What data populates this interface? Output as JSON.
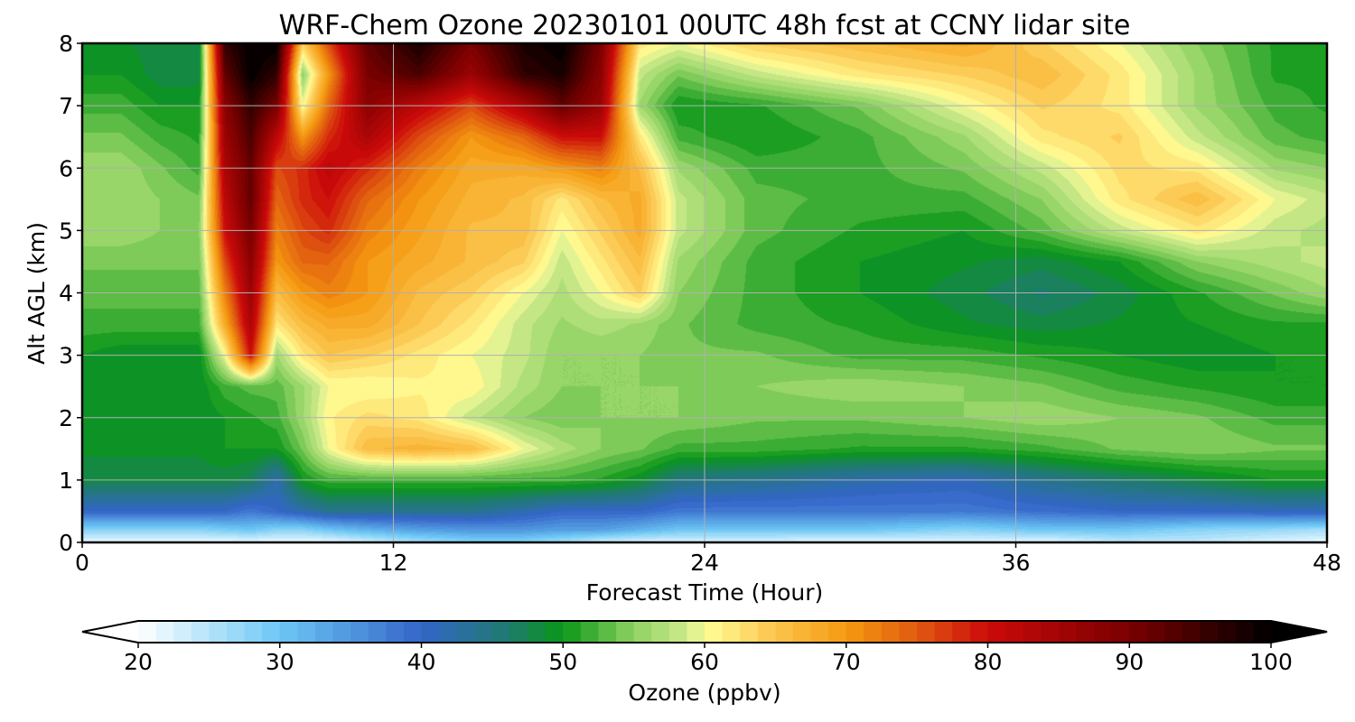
{
  "chart_data": {
    "type": "heatmap",
    "title": "WRF-Chem Ozone  20230101 00UTC 48h fcst at CCNY lidar site",
    "xlabel": "Forecast Time (Hour)",
    "ylabel": "Alt AGL (km)",
    "xlim": [
      0,
      48
    ],
    "ylim": [
      0,
      8
    ],
    "xticks": [
      0,
      12,
      24,
      36,
      48
    ],
    "yticks": [
      0,
      1,
      2,
      3,
      4,
      5,
      6,
      7,
      8
    ],
    "grid": true,
    "colorbar": {
      "label": "Ozone  (ppbv)",
      "range": [
        20,
        100
      ],
      "ticks": [
        20,
        30,
        40,
        50,
        60,
        70,
        80,
        90,
        100
      ],
      "extend": "both",
      "stops": [
        {
          "v": 20,
          "c": "#ffffff"
        },
        {
          "v": 30,
          "c": "#6cc7f5"
        },
        {
          "v": 40,
          "c": "#3465c8"
        },
        {
          "v": 46,
          "c": "#1f7a70"
        },
        {
          "v": 50,
          "c": "#0a9618"
        },
        {
          "v": 55,
          "c": "#8ed262"
        },
        {
          "v": 59,
          "c": "#d3ec8e"
        },
        {
          "v": 60,
          "c": "#ffff99"
        },
        {
          "v": 65,
          "c": "#fbc44c"
        },
        {
          "v": 70,
          "c": "#f59a10"
        },
        {
          "v": 75,
          "c": "#e05a10"
        },
        {
          "v": 80,
          "c": "#cc0a0a"
        },
        {
          "v": 90,
          "c": "#7a0000"
        },
        {
          "v": 100,
          "c": "#000000"
        }
      ]
    },
    "x_hours": [
      0,
      1.5,
      3,
      4.5,
      5.5,
      6.5,
      7.5,
      8.5,
      9.5,
      11,
      13,
      15,
      17,
      18.5,
      20,
      21.5,
      23,
      26,
      30,
      34,
      37,
      40,
      43,
      46,
      48
    ],
    "y_km": [
      0,
      0.2,
      0.5,
      1,
      1.5,
      2,
      2.5,
      3,
      3.5,
      4,
      4.5,
      5,
      5.5,
      6,
      6.5,
      7,
      7.5,
      8
    ],
    "ozone_ppbv": [
      [
        21,
        21,
        21,
        21,
        21,
        21,
        21,
        21,
        21,
        23,
        26,
        28,
        28,
        26,
        23,
        22,
        22,
        22,
        21,
        22,
        21,
        24,
        24,
        22,
        21
      ],
      [
        28,
        28,
        28,
        28,
        29,
        30,
        28,
        28,
        30,
        32,
        34,
        35,
        35,
        34,
        34,
        32,
        30,
        30,
        30,
        28,
        30,
        30,
        28,
        27,
        26
      ],
      [
        40,
        40,
        40,
        40,
        40,
        38,
        40,
        42,
        44,
        44,
        44,
        44,
        42,
        40,
        40,
        40,
        38,
        38,
        38,
        38,
        39,
        40,
        40,
        41,
        41
      ],
      [
        48,
        48,
        48,
        48,
        48,
        47,
        42,
        50,
        52,
        52,
        52,
        52,
        52,
        52,
        51,
        49,
        45,
        44,
        42,
        41,
        44,
        46,
        48,
        50,
        50
      ],
      [
        49,
        49,
        49,
        49,
        50,
        50,
        50,
        54,
        60,
        66,
        67,
        66,
        60,
        57,
        55,
        54,
        52,
        52,
        51,
        51,
        52,
        54,
        55,
        54,
        54
      ],
      [
        50,
        50,
        49,
        49,
        50,
        51,
        52,
        56,
        61,
        63,
        62,
        58,
        55,
        54,
        55,
        55,
        55,
        54,
        54,
        55,
        56,
        55,
        54,
        52,
        52
      ],
      [
        49,
        49,
        49,
        49,
        52,
        53,
        53,
        56,
        60,
        60,
        61,
        61,
        57,
        55,
        55,
        55,
        55,
        55,
        56,
        55,
        54,
        52,
        51,
        50,
        50
      ],
      [
        50,
        49,
        49,
        49,
        60,
        80,
        56,
        62,
        65,
        64,
        62,
        60,
        58,
        55,
        55,
        55,
        54,
        54,
        52,
        52,
        51,
        50,
        49,
        50,
        50
      ],
      [
        52,
        52,
        52,
        52,
        68,
        84,
        62,
        66,
        68,
        68,
        65,
        62,
        58,
        56,
        57,
        56,
        54,
        52,
        51,
        49,
        48,
        49,
        50,
        51,
        51
      ],
      [
        53,
        53,
        53,
        53,
        72,
        86,
        66,
        70,
        72,
        70,
        66,
        64,
        60,
        57,
        60,
        64,
        55,
        52,
        50,
        48,
        46,
        48,
        51,
        54,
        56
      ],
      [
        54,
        54,
        54,
        54,
        76,
        88,
        70,
        74,
        74,
        70,
        68,
        66,
        64,
        58,
        62,
        66,
        56,
        52,
        50,
        49,
        48,
        50,
        55,
        57,
        58
      ],
      [
        56,
        56,
        55,
        55,
        80,
        90,
        72,
        76,
        78,
        72,
        69,
        66,
        66,
        60,
        64,
        68,
        58,
        53,
        51,
        50,
        53,
        58,
        62,
        58,
        57
      ],
      [
        56,
        56,
        55,
        54,
        82,
        92,
        74,
        78,
        80,
        74,
        70,
        67,
        66,
        62,
        66,
        68,
        58,
        53,
        52,
        52,
        55,
        62,
        66,
        60,
        58
      ],
      [
        56,
        56,
        54,
        52,
        84,
        92,
        76,
        78,
        82,
        78,
        72,
        68,
        68,
        70,
        72,
        66,
        56,
        52,
        52,
        54,
        58,
        63,
        62,
        56,
        55
      ],
      [
        54,
        54,
        52,
        51,
        86,
        94,
        82,
        70,
        78,
        84,
        76,
        70,
        74,
        80,
        80,
        62,
        52,
        50,
        52,
        56,
        62,
        64,
        58,
        53,
        52
      ],
      [
        52,
        52,
        50,
        50,
        88,
        96,
        90,
        60,
        74,
        88,
        82,
        76,
        84,
        92,
        86,
        56,
        50,
        51,
        54,
        60,
        64,
        62,
        56,
        52,
        51
      ],
      [
        50,
        50,
        48,
        48,
        92,
        100,
        96,
        55,
        70,
        90,
        94,
        86,
        96,
        98,
        88,
        58,
        54,
        58,
        62,
        64,
        66,
        62,
        56,
        51,
        51
      ],
      [
        49,
        49,
        48,
        48,
        96,
        100,
        100,
        64,
        76,
        92,
        98,
        90,
        98,
        100,
        90,
        62,
        60,
        64,
        66,
        68,
        64,
        60,
        55,
        51,
        51
      ]
    ]
  }
}
